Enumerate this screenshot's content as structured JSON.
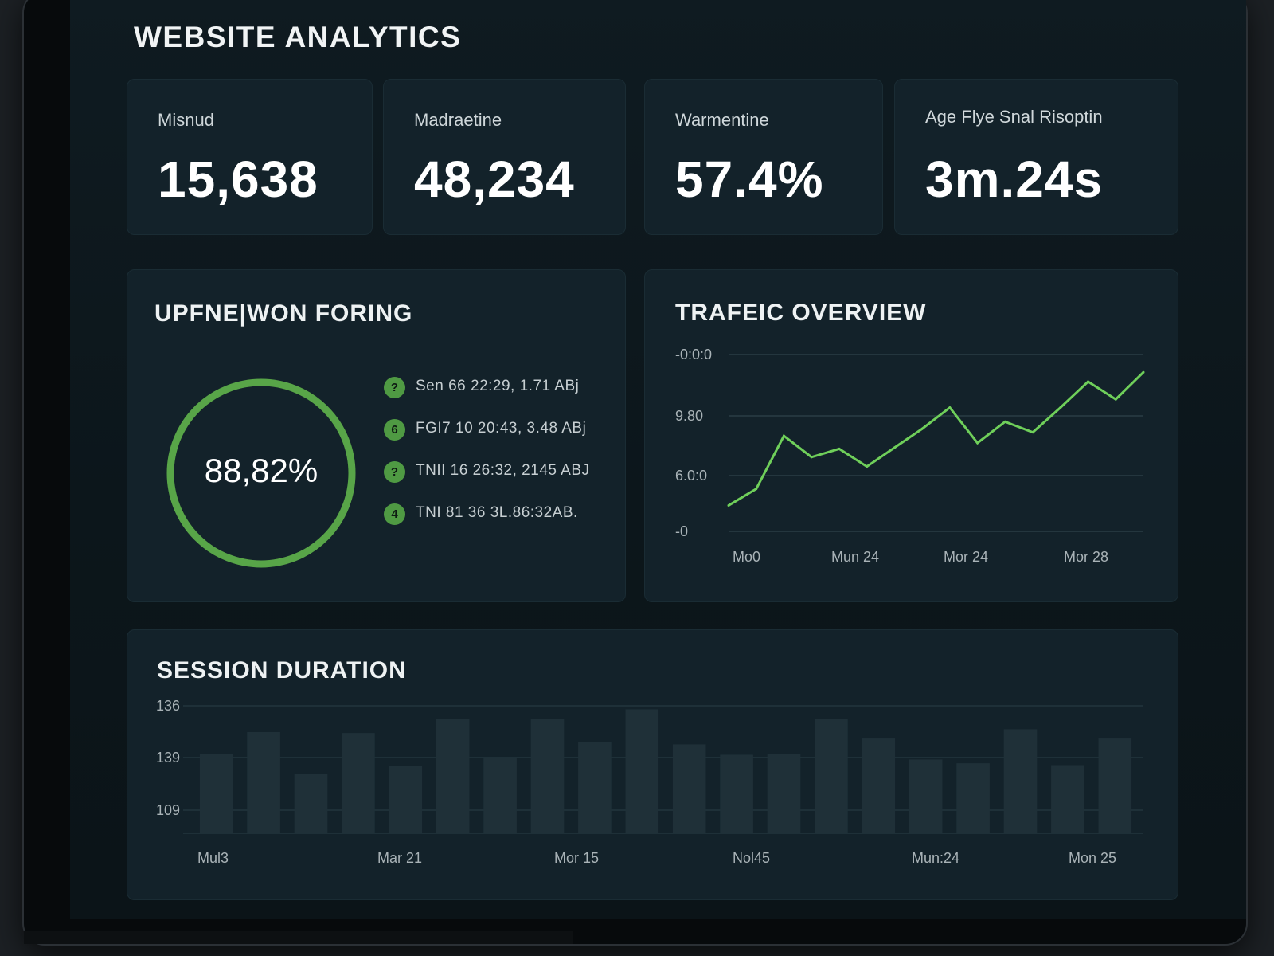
{
  "header": {
    "title": "WEBSITE ANALYTICS"
  },
  "kpis": [
    {
      "label": "Misnud",
      "value": "15,638"
    },
    {
      "label": "Madraetine",
      "value": "48,234"
    },
    {
      "label": "Warmentine",
      "value": "57.4%"
    },
    {
      "label": "Age Flye Snal Risoptin",
      "value": "3m.24s"
    }
  ],
  "forecast_panel": {
    "title": "UPFNE|WON FORING",
    "ring_value": "88,82%",
    "ring_fraction": 1.0,
    "items": [
      {
        "icon": "?",
        "text": "Sen 66 22:29, 1.71 ABj"
      },
      {
        "icon": "6",
        "text": "FGI7 10 20:43, 3.48 ABj"
      },
      {
        "icon": "?",
        "text": "TNII 16 26:32, 2145 ABJ"
      },
      {
        "icon": "4",
        "text": "TNI 81 36 3L.86:32AB."
      }
    ]
  },
  "traffic_panel": {
    "title": "TRAFEIC OVERVIEW"
  },
  "session_panel": {
    "title": "SESSION DURATION"
  },
  "colors": {
    "accent_green": "#6fcf5a",
    "ring_green": "#58a548",
    "bar": "#1f3038",
    "background": "#0f1b21"
  },
  "chart_data": [
    {
      "type": "line",
      "title": "TRAFEIC OVERVIEW",
      "y_tick_labels": [
        "-0:0:0",
        "9.80",
        "6.0:0",
        "-0"
      ],
      "x_tick_labels": [
        "Mo0",
        "Mun 24",
        "Mor 24",
        "Mor 28"
      ],
      "grid": true,
      "series": [
        {
          "values": [
            0.22,
            0.36,
            0.81,
            0.63,
            0.7,
            0.55,
            0.71,
            0.87,
            1.05,
            0.75,
            0.93,
            0.84,
            1.05,
            1.27,
            1.12,
            1.35
          ]
        }
      ]
    },
    {
      "type": "bar",
      "title": "SESSION DURATION",
      "y_tick_labels": [
        "136",
        "139",
        "109"
      ],
      "x_tick_labels": [
        "Mul3",
        "Mar 21",
        "Mor 15",
        "Nol45",
        "Mun:24",
        "Mon 25"
      ],
      "grid": true,
      "values": [
        84,
        107,
        63,
        106,
        71,
        121,
        80,
        121,
        96,
        131,
        94,
        83,
        84,
        121,
        101,
        78,
        74,
        110,
        72,
        101
      ]
    }
  ]
}
